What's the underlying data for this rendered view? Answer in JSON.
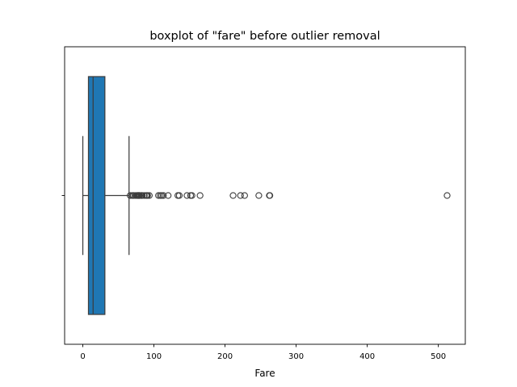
{
  "chart_data": {
    "type": "box",
    "title": "boxplot of \"fare\" before outlier removal",
    "xlabel": "Fare",
    "ylabel": "",
    "xlim": [
      -25.6,
      537.9
    ],
    "xticks": [
      0,
      100,
      200,
      300,
      400,
      500
    ],
    "xtick_labels": [
      "0",
      "100",
      "200",
      "300",
      "400",
      "500"
    ],
    "orientation": "horizontal",
    "grid": false,
    "series": [
      {
        "box": {
          "whisker_low": 0.0,
          "q1": 7.91,
          "median": 14.45,
          "q3": 31.0,
          "whisker_high": 65.0,
          "fill_color": "#1f77b4",
          "line_color": "#3d3d3d"
        },
        "outliers": [
          66.6,
          69.55,
          71.0,
          71.28,
          73.5,
          75.25,
          76.29,
          76.73,
          77.29,
          77.96,
          78.27,
          78.85,
          79.2,
          79.65,
          80.0,
          81.86,
          82.17,
          83.16,
          83.47,
          86.5,
          89.1,
          90.0,
          91.08,
          93.5,
          106.43,
          108.9,
          110.88,
          113.28,
          120.0,
          133.65,
          135.63,
          146.52,
          151.55,
          153.46,
          164.87,
          211.34,
          221.78,
          227.53,
          247.52,
          262.38,
          263.0,
          512.33
        ]
      }
    ]
  }
}
